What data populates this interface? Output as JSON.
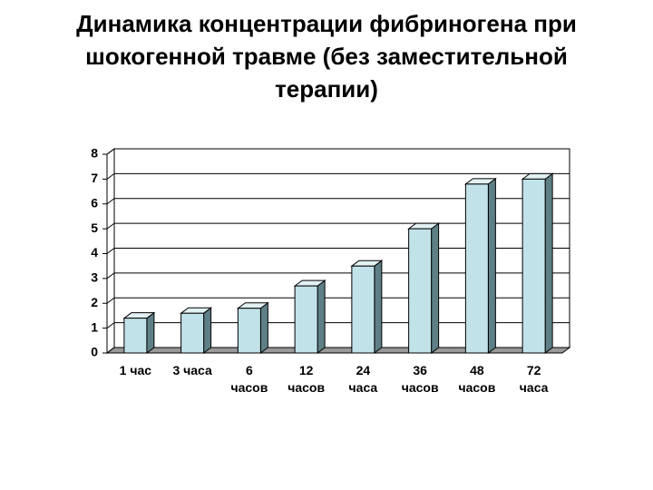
{
  "chart_data": {
    "type": "bar",
    "title": "Динамика концентрации фибриногена при\nшокогенной травме (без заместительной\nтерапии)",
    "categories": [
      "1 час",
      "3 часа",
      "6 часов",
      "12 часов",
      "24 часа",
      "36 часов",
      "48 часов",
      "72 часа"
    ],
    "values": [
      1.4,
      1.6,
      1.8,
      2.7,
      3.5,
      5.0,
      6.8,
      7.0
    ],
    "color": "#c2e2ea",
    "ylim": [
      0,
      8
    ],
    "yticks": [
      0,
      1,
      2,
      3,
      4,
      5,
      6,
      7,
      8
    ],
    "grid": true
  }
}
